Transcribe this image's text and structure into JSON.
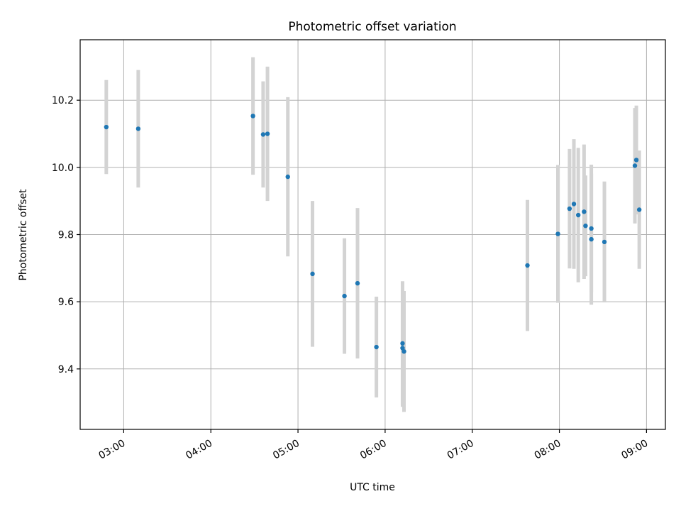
{
  "chart_data": {
    "type": "scatter",
    "title": "Photometric offset variation",
    "xlabel": "UTC time",
    "ylabel": "Photometric offset",
    "x_tick_labels": [
      "03:00",
      "04:00",
      "05:00",
      "06:00",
      "07:00",
      "08:00",
      "09:00"
    ],
    "y_tick_labels": [
      "9.4",
      "9.6",
      "9.8",
      "10.0",
      "10.2"
    ],
    "y_ticks": [
      9.4,
      9.6,
      9.8,
      10.0,
      10.2
    ],
    "xlim": [
      "02:30",
      "09:13"
    ],
    "ylim": [
      9.22,
      10.38
    ],
    "grid": true,
    "marker_color": "#1f77b4",
    "errorbar_color": "#d3d3d3",
    "points": [
      {
        "t": "02:48",
        "y": 10.12,
        "err": 0.14
      },
      {
        "t": "03:10",
        "y": 10.115,
        "err": 0.175
      },
      {
        "t": "04:29",
        "y": 10.153,
        "err": 0.175
      },
      {
        "t": "04:36",
        "y": 10.098,
        "err": 0.158
      },
      {
        "t": "04:39",
        "y": 10.1,
        "err": 0.2
      },
      {
        "t": "04:53",
        "y": 9.972,
        "err": 0.237
      },
      {
        "t": "05:10",
        "y": 9.683,
        "err": 0.217
      },
      {
        "t": "05:32",
        "y": 9.617,
        "err": 0.172
      },
      {
        "t": "05:41",
        "y": 9.655,
        "err": 0.224
      },
      {
        "t": "05:54",
        "y": 9.465,
        "err": 0.15
      },
      {
        "t": "06:12",
        "y": 9.476,
        "err": 0.185
      },
      {
        "t": "06:12",
        "y": 9.462,
        "err": 0.175
      },
      {
        "t": "06:13",
        "y": 9.452,
        "err": 0.18
      },
      {
        "t": "07:38",
        "y": 9.708,
        "err": 0.195
      },
      {
        "t": "07:59",
        "y": 9.802,
        "err": 0.205
      },
      {
        "t": "08:07",
        "y": 9.877,
        "err": 0.178
      },
      {
        "t": "08:10",
        "y": 9.891,
        "err": 0.193
      },
      {
        "t": "08:13",
        "y": 9.858,
        "err": 0.2
      },
      {
        "t": "08:17",
        "y": 9.868,
        "err": 0.2
      },
      {
        "t": "08:18",
        "y": 9.826,
        "err": 0.15
      },
      {
        "t": "08:22",
        "y": 9.818,
        "err": 0.19
      },
      {
        "t": "08:22",
        "y": 9.786,
        "err": 0.195
      },
      {
        "t": "08:31",
        "y": 9.778,
        "err": 0.18
      },
      {
        "t": "08:52",
        "y": 10.005,
        "err": 0.172
      },
      {
        "t": "08:53",
        "y": 10.022,
        "err": 0.162
      },
      {
        "t": "08:55",
        "y": 9.874,
        "err": 0.176
      }
    ]
  }
}
